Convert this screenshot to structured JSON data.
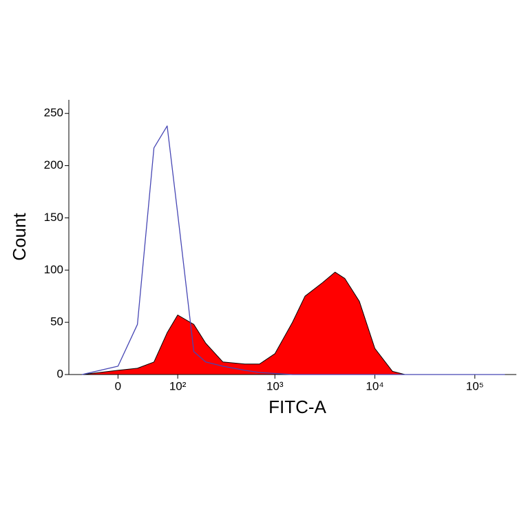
{
  "chart_data": {
    "type": "histogram-overlay",
    "xlabel": "FITC-A",
    "ylabel": "Count",
    "x_scale": "asinh",
    "x": [
      -50,
      0,
      25,
      50,
      75,
      100,
      150,
      200,
      300,
      500,
      700,
      1000,
      1500,
      2000,
      3000,
      4000,
      5000,
      7000,
      10000,
      15000,
      20000,
      50000,
      100000,
      200000
    ],
    "series": [
      {
        "color": "#ff0000",
        "fill": true,
        "values": [
          0,
          4,
          6,
          12,
          40,
          57,
          48,
          30,
          12,
          10,
          10,
          20,
          50,
          75,
          88,
          98,
          92,
          70,
          25,
          3,
          0,
          0,
          0,
          0
        ]
      },
      {
        "color": "#4646b4",
        "fill": false,
        "values": [
          0,
          8,
          48,
          217,
          238,
          154,
          22,
          12,
          8,
          4,
          2,
          1,
          0,
          0,
          0,
          0,
          0,
          0,
          0,
          0,
          0,
          0,
          0,
          0
        ]
      }
    ],
    "xlim": [
      -75,
      260000
    ],
    "xticks": [
      0,
      {
        "value": 100,
        "label": "10²"
      },
      {
        "value": 1000,
        "label": "10³"
      },
      {
        "value": 10000,
        "label": "10⁴"
      },
      {
        "value": 100000,
        "label": "10⁵"
      }
    ],
    "ylim": [
      0,
      263
    ],
    "yticks": [
      0,
      50,
      100,
      150,
      200,
      250
    ]
  }
}
